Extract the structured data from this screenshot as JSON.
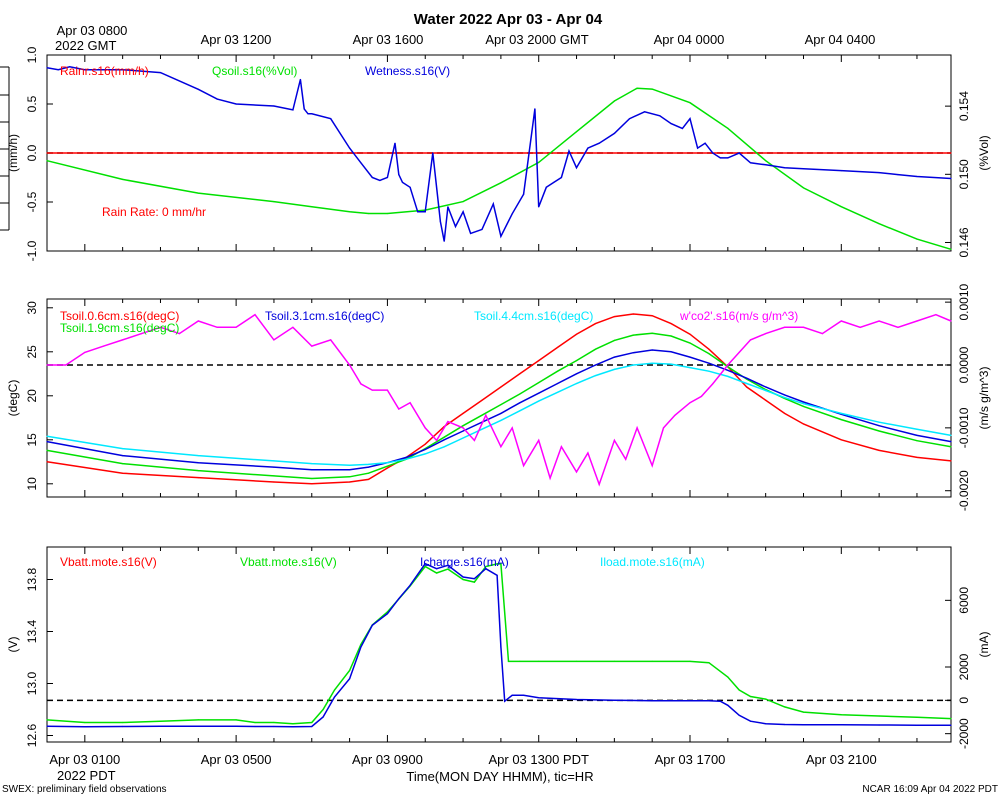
{
  "page": {
    "title": "Water 2022 Apr 03 - Apr 04",
    "footer_left": "SWEX: preliminary field observations",
    "footer_right": "NCAR 16:09 Apr 04 2022 PDT",
    "xlabel": "Time(MON DAY HHMM), tic=HR",
    "top_axis": {
      "labels": [
        "Apr 03 0800",
        "Apr 03 1200",
        "Apr 03 1600",
        "Apr 03 2000 GMT",
        "Apr 04 0000",
        "Apr 04 0400"
      ],
      "sublabel": "2022 GMT"
    },
    "bottom_axis": {
      "labels": [
        "Apr 03 0100",
        "Apr 03 0500",
        "Apr 03 0900",
        "Apr 03 1300 PDT",
        "Apr 03 1700",
        "Apr 03 2100"
      ],
      "sublabel": "2022 PDT"
    },
    "colors": {
      "red": "#ff0000",
      "green": "#00e000",
      "blue": "#0000dd",
      "cyan": "#00e8ff",
      "magenta": "#ff00ff"
    }
  },
  "chart_data": [
    {
      "type": "line",
      "x_unit": "hours since Apr 03 0000 PDT",
      "xlim": [
        0.0,
        23.9
      ],
      "ylabel_left": "(mm/h)",
      "ylim_left": [
        -1.0,
        1.0
      ],
      "left_ticks": [
        "1.0",
        "0.5",
        "0.0",
        "-0.5",
        "-1.0"
      ],
      "ylabel_right": "(%Vol)",
      "ylim_right": [
        0.1455,
        0.157
      ],
      "right_ticks": [
        "0.154",
        "0.150",
        "0.146"
      ],
      "annotation": "Rain Rate: 0 mm/hr",
      "zero_line": 0.0,
      "series": [
        {
          "name": "Rainr.s16(mm/h)",
          "color": "red",
          "axis": "left",
          "x": [
            0.0,
            23.9
          ],
          "y": [
            0.0,
            0.0
          ]
        },
        {
          "name": "Qsoil.s16(%Vol)",
          "color": "green",
          "axis": "right",
          "x": [
            0.0,
            2,
            4,
            6,
            7,
            8,
            8.5,
            9.0,
            10,
            11,
            12,
            13,
            14,
            15,
            15.6,
            16,
            17,
            18,
            19,
            20,
            21,
            22,
            23,
            23.9
          ],
          "y": [
            0.1508,
            0.1497,
            0.1489,
            0.1484,
            0.1481,
            0.1478,
            0.1477,
            0.1477,
            0.1479,
            0.1484,
            0.1495,
            0.1507,
            0.1525,
            0.1543,
            0.15505,
            0.155,
            0.1542,
            0.1527,
            0.1508,
            0.1492,
            0.1481,
            0.1471,
            0.1462,
            0.1456
          ]
        },
        {
          "name": "Wetness.s16(V)",
          "color": "blue",
          "axis": "left",
          "x": [
            0.0,
            0.3,
            0.6,
            1,
            2,
            3,
            4,
            4.5,
            5,
            6,
            6.5,
            6.7,
            6.8,
            6.9,
            7,
            7.5,
            8,
            8.3,
            8.6,
            8.8,
            9.0,
            9.2,
            9.3,
            9.4,
            9.6,
            9.8,
            10.0,
            10.2,
            10.4,
            10.5,
            10.6,
            10.8,
            11.0,
            11.2,
            11.5,
            11.8,
            12.0,
            12.3,
            12.6,
            12.9,
            13.0,
            13.2,
            13.4,
            13.6,
            13.8,
            14.0,
            14.3,
            14.6,
            15.0,
            15.4,
            15.8,
            16.2,
            16.5,
            16.8,
            17.0,
            17.2,
            17.4,
            17.6,
            17.8,
            18.0,
            18.3,
            18.6,
            19,
            19.5,
            20,
            21,
            22,
            22.5,
            23,
            23.9
          ],
          "y": [
            0.87,
            0.85,
            0.88,
            0.85,
            0.85,
            0.82,
            0.65,
            0.55,
            0.5,
            0.48,
            0.44,
            0.75,
            0.45,
            0.4,
            0.4,
            0.35,
            0.05,
            -0.1,
            -0.25,
            -0.28,
            -0.25,
            0.1,
            -0.22,
            -0.3,
            -0.35,
            -0.6,
            -0.6,
            0.0,
            -0.7,
            -0.9,
            -0.55,
            -0.75,
            -0.6,
            -0.82,
            -0.78,
            -0.52,
            -0.85,
            -0.62,
            -0.42,
            0.45,
            -0.55,
            -0.35,
            -0.3,
            -0.25,
            0.02,
            -0.15,
            0.05,
            0.1,
            0.2,
            0.35,
            0.42,
            0.38,
            0.3,
            0.25,
            0.35,
            0.05,
            0.1,
            0.0,
            -0.05,
            -0.05,
            0.0,
            -0.1,
            -0.12,
            -0.15,
            -0.16,
            -0.18,
            -0.2,
            -0.22,
            -0.24,
            -0.26
          ]
        }
      ]
    },
    {
      "type": "line",
      "x_unit": "hours since Apr 03 0000 PDT",
      "xlim": [
        0.0,
        23.9
      ],
      "ylabel_left": "(degC)",
      "ylim_left": [
        8.5,
        31.0
      ],
      "left_ticks": [
        "30",
        "25",
        "20",
        "15",
        "10"
      ],
      "ylabel_right": "(m/s g/m^3)",
      "ylim_right": [
        -0.0021,
        0.00105
      ],
      "right_ticks": [
        "0.0010",
        "0.0000",
        "-0.0010",
        "-0.0020"
      ],
      "zero_line": 0.0,
      "series": [
        {
          "name": "Tsoil.0.6cm.s16(degC)",
          "color": "red",
          "axis": "left",
          "x": [
            0.0,
            2,
            4,
            6,
            7,
            8,
            8.5,
            9,
            9.5,
            10,
            10.5,
            11,
            11.5,
            12,
            12.5,
            13,
            13.5,
            14,
            14.5,
            15,
            15.5,
            16,
            16.5,
            17,
            17.5,
            18,
            18.5,
            19,
            19.5,
            20,
            21,
            22,
            23,
            23.9
          ],
          "y": [
            12.5,
            11.2,
            10.7,
            10.2,
            10.0,
            10.2,
            10.5,
            11.8,
            13.0,
            14.5,
            16.5,
            18.0,
            19.5,
            21.0,
            22.5,
            24.0,
            25.5,
            27.0,
            28.2,
            29.0,
            29.3,
            29.1,
            28.2,
            27.0,
            25.3,
            23.3,
            21.0,
            19.5,
            18.0,
            16.8,
            15.0,
            13.8,
            13.0,
            12.6
          ]
        },
        {
          "name": "Tsoil.1.9cm.s16(degC)",
          "color": "green",
          "axis": "left",
          "x": [
            0.0,
            2,
            4,
            6,
            7,
            8,
            8.5,
            9,
            9.5,
            10,
            10.5,
            11,
            11.5,
            12,
            12.5,
            13,
            13.5,
            14,
            14.5,
            15,
            15.5,
            16,
            16.5,
            17,
            17.5,
            18,
            18.5,
            19,
            19.5,
            20,
            21,
            22,
            23,
            23.9
          ],
          "y": [
            13.8,
            12.3,
            11.5,
            10.9,
            10.6,
            10.8,
            11.2,
            12.0,
            12.8,
            14.0,
            15.3,
            16.6,
            17.8,
            19.0,
            20.2,
            21.5,
            22.8,
            24.0,
            25.3,
            26.3,
            26.9,
            27.1,
            26.8,
            26.0,
            24.8,
            23.3,
            21.9,
            20.7,
            19.7,
            18.8,
            17.3,
            16.0,
            14.9,
            14.2
          ]
        },
        {
          "name": "Tsoil.3.1cm.s16(degC)",
          "color": "blue",
          "axis": "left",
          "x": [
            0.0,
            2,
            4,
            6,
            7,
            8,
            8.5,
            9,
            9.5,
            10,
            10.5,
            11,
            11.5,
            12,
            12.5,
            13,
            13.5,
            14,
            14.5,
            15,
            15.5,
            16,
            16.5,
            17,
            17.5,
            18,
            18.5,
            19,
            19.5,
            20,
            21,
            22,
            23,
            23.9
          ],
          "y": [
            14.8,
            13.2,
            12.4,
            11.9,
            11.6,
            11.6,
            11.9,
            12.4,
            13.0,
            13.9,
            15.0,
            16.0,
            17.0,
            18.0,
            19.2,
            20.3,
            21.4,
            22.5,
            23.5,
            24.4,
            24.9,
            25.2,
            25.0,
            24.4,
            23.7,
            22.9,
            22.0,
            21.0,
            20.1,
            19.3,
            17.9,
            16.6,
            15.5,
            14.8
          ]
        },
        {
          "name": "Tsoil.4.4cm.s16(degC)",
          "color": "cyan",
          "axis": "left",
          "x": [
            0.0,
            2,
            4,
            6,
            7,
            8,
            8.5,
            9,
            9.5,
            10,
            10.5,
            11,
            11.5,
            12,
            12.5,
            13,
            13.5,
            14,
            14.5,
            15,
            15.5,
            16,
            16.5,
            17,
            17.5,
            18,
            18.5,
            19,
            19.5,
            20,
            21,
            22,
            23,
            23.9
          ],
          "y": [
            15.4,
            14.0,
            13.2,
            12.6,
            12.3,
            12.1,
            12.2,
            12.4,
            12.8,
            13.4,
            14.2,
            15.2,
            16.2,
            17.2,
            18.3,
            19.4,
            20.4,
            21.4,
            22.3,
            23.0,
            23.5,
            23.7,
            23.6,
            23.2,
            22.8,
            22.2,
            21.4,
            20.6,
            19.8,
            19.1,
            18.0,
            17.0,
            16.2,
            15.5
          ]
        },
        {
          "name": "w'co2'.s16(m/s g/m^3)",
          "color": "magenta",
          "axis": "right",
          "x": [
            0.0,
            0.5,
            1.0,
            1.5,
            2.0,
            2.5,
            3.0,
            3.5,
            4.0,
            4.5,
            5.0,
            5.5,
            6.0,
            6.5,
            7.0,
            7.5,
            8.0,
            8.3,
            8.6,
            9.0,
            9.3,
            9.6,
            10.0,
            10.3,
            10.6,
            11.0,
            11.3,
            11.6,
            12.0,
            12.3,
            12.6,
            13.0,
            13.3,
            13.6,
            14.0,
            14.3,
            14.6,
            15.0,
            15.3,
            15.6,
            16.0,
            16.3,
            16.6,
            17.0,
            17.3,
            17.6,
            18.0,
            18.3,
            18.6,
            19.0,
            19.5,
            20.0,
            20.5,
            21.0,
            21.5,
            22.0,
            22.5,
            23.0,
            23.5,
            23.9
          ],
          "y": [
            0.0,
            0.0,
            0.0002,
            0.0003,
            0.0004,
            0.0005,
            0.0006,
            0.0005,
            0.0007,
            0.0006,
            0.0006,
            0.0008,
            0.0004,
            0.0006,
            0.0003,
            0.0004,
            0.0,
            -0.0003,
            -0.0004,
            -0.0004,
            -0.0007,
            -0.0006,
            -0.001,
            -0.0012,
            -0.0009,
            -0.001,
            -0.0012,
            -0.0008,
            -0.0013,
            -0.001,
            -0.0016,
            -0.0012,
            -0.0018,
            -0.0013,
            -0.0017,
            -0.0014,
            -0.0019,
            -0.0012,
            -0.0015,
            -0.001,
            -0.0016,
            -0.001,
            -0.0008,
            -0.0006,
            -0.0005,
            -0.0003,
            0.0,
            0.0002,
            0.0004,
            0.0005,
            0.0006,
            0.0006,
            0.0005,
            0.0007,
            0.0006,
            0.0007,
            0.0006,
            0.0007,
            0.0008,
            0.0007
          ]
        }
      ]
    },
    {
      "type": "line",
      "x_unit": "hours since Apr 03 0000 PDT",
      "xlim": [
        0.0,
        23.9
      ],
      "ylabel_left": "(V)",
      "ylim_left": [
        12.55,
        14.05
      ],
      "left_ticks": [
        "13.8",
        "13.4",
        "13.0",
        "12.6"
      ],
      "ylabel_right": "(mA)",
      "ylim_right": [
        -2500,
        9200
      ],
      "right_ticks": [
        "6000",
        "2000",
        "0",
        "-2000"
      ],
      "zero_line": 0.0,
      "series": [
        {
          "name": "Vbatt.mote.s16(V)",
          "color": "red",
          "axis": "left",
          "x": [],
          "y": []
        },
        {
          "name": "Vbatt.mote.s16(V)",
          "color": "green",
          "axis": "left",
          "x": [
            0.0,
            1,
            2,
            3,
            4,
            5,
            5.5,
            6,
            6.5,
            7.0,
            7.3,
            7.6,
            8.0,
            8.3,
            8.6,
            9.0,
            9.3,
            9.6,
            10.0,
            10.3,
            10.6,
            11.0,
            11.3,
            11.6,
            11.9,
            12.0,
            12.2,
            12.5,
            13,
            14,
            15,
            16,
            17,
            17.5,
            18,
            18.3,
            18.6,
            19.0,
            19.5,
            20,
            21,
            22,
            23,
            23.9
          ],
          "y": [
            12.72,
            12.7,
            12.7,
            12.71,
            12.72,
            12.72,
            12.7,
            12.7,
            12.69,
            12.7,
            12.8,
            12.95,
            13.1,
            13.3,
            13.45,
            13.55,
            13.65,
            13.75,
            13.9,
            13.85,
            13.88,
            13.8,
            13.78,
            13.9,
            13.92,
            13.92,
            13.17,
            13.17,
            13.17,
            13.17,
            13.17,
            13.17,
            13.17,
            13.16,
            13.05,
            12.95,
            12.9,
            12.88,
            12.82,
            12.78,
            12.76,
            12.75,
            12.74,
            12.73
          ]
        },
        {
          "name": "Icharge.s16(mA)",
          "color": "blue",
          "axis": "right",
          "x": [
            0.0,
            1,
            2,
            3,
            4,
            5,
            5.5,
            6,
            6.5,
            7.0,
            7.3,
            7.6,
            8.0,
            8.3,
            8.6,
            9.0,
            9.3,
            9.6,
            10.0,
            10.3,
            10.6,
            11.0,
            11.3,
            11.6,
            11.9,
            12.0,
            12.1,
            12.3,
            12.6,
            13,
            14,
            15,
            16,
            17,
            17.5,
            17.8,
            18,
            18.3,
            18.6,
            19.0,
            19.5,
            20,
            21,
            22,
            23,
            23.9
          ],
          "y": [
            -1550,
            -1580,
            -1570,
            -1560,
            -1560,
            -1560,
            -1570,
            -1570,
            -1590,
            -1570,
            -1000,
            200,
            1300,
            3200,
            4500,
            5200,
            6100,
            6900,
            8200,
            7900,
            8100,
            7400,
            7300,
            7900,
            7500,
            3200,
            -50,
            300,
            300,
            150,
            50,
            0,
            -20,
            -30,
            -20,
            -50,
            -300,
            -900,
            -1250,
            -1400,
            -1450,
            -1460,
            -1470,
            -1480,
            -1490,
            -1500
          ]
        },
        {
          "name": "Iload.mote.s16(mA)",
          "color": "cyan",
          "axis": "right",
          "x": [],
          "y": []
        }
      ]
    }
  ]
}
